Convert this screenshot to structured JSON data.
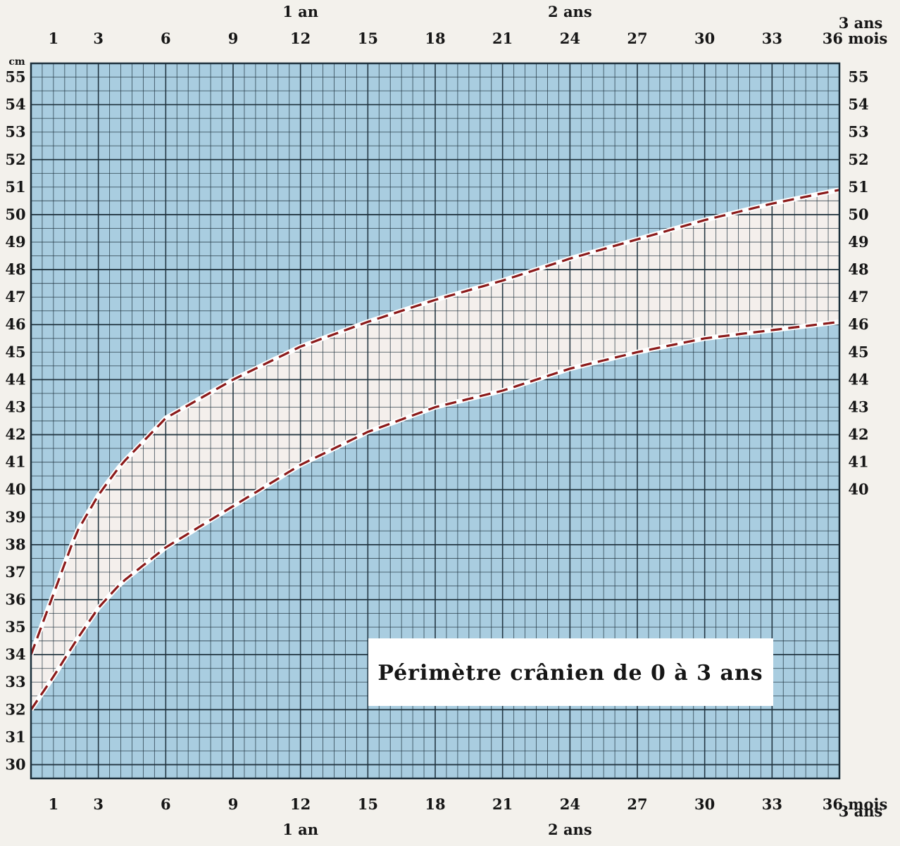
{
  "chart_data": {
    "type": "line",
    "title": "Périmètre crânien de 0 à 3 ans",
    "y_unit": "cm",
    "x_ticks": [
      "1",
      "3",
      "6",
      "9",
      "12",
      "15",
      "18",
      "21",
      "24",
      "27",
      "30",
      "33",
      "36 mois"
    ],
    "x_tick_values": [
      1,
      3,
      6,
      9,
      12,
      15,
      18,
      21,
      24,
      27,
      30,
      33,
      36
    ],
    "year_labels": [
      {
        "label": "1 an",
        "month": 12
      },
      {
        "label": "2 ans",
        "month": 24
      },
      {
        "label": "3 ans",
        "month": 36
      }
    ],
    "y_ticks_left": [
      30,
      31,
      32,
      33,
      34,
      35,
      36,
      37,
      38,
      39,
      40,
      41,
      42,
      43,
      44,
      45,
      46,
      47,
      48,
      49,
      50,
      51,
      52,
      53,
      54,
      55
    ],
    "y_ticks_right": [
      40,
      41,
      42,
      43,
      44,
      45,
      46,
      47,
      48,
      49,
      50,
      51,
      52,
      53,
      54,
      55
    ],
    "xlim": [
      0,
      36
    ],
    "ylim": [
      29.5,
      55.5
    ],
    "grid": true,
    "series": [
      {
        "style": "dashed",
        "color": "#8b1a1a",
        "x": [
          0,
          1,
          2,
          3,
          4,
          6,
          9,
          12,
          15,
          18,
          21,
          24,
          27,
          30,
          33,
          36
        ],
        "y": [
          34.0,
          36.2,
          38.4,
          39.8,
          40.9,
          42.6,
          44.0,
          45.2,
          46.1,
          46.9,
          47.6,
          48.4,
          49.1,
          49.8,
          50.4,
          50.9
        ]
      },
      {
        "style": "dashed",
        "color": "#8b1a1a",
        "x": [
          0,
          1,
          2,
          3,
          4,
          6,
          9,
          12,
          15,
          18,
          21,
          24,
          27,
          30,
          33,
          36
        ],
        "y": [
          32.0,
          33.2,
          34.5,
          35.7,
          36.6,
          37.9,
          39.4,
          40.9,
          42.1,
          43.0,
          43.6,
          44.4,
          45.0,
          45.5,
          45.8,
          46.1
        ]
      }
    ],
    "colors": {
      "outside_band": "#a9cde0",
      "inside_band": "#f4efec",
      "grid_line": "#1b2e3a"
    }
  }
}
